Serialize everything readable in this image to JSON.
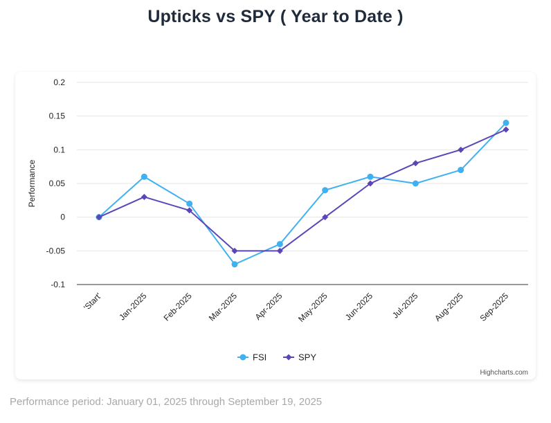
{
  "header": {
    "title": "Upticks vs SPY ( Year to Date )"
  },
  "footer": {
    "note": "Performance period: January 01, 2025 through September 19, 2025"
  },
  "credits": {
    "label": "Highcharts.com"
  },
  "colors": {
    "fsi": "#3fb0f0",
    "spy": "#5b45b8",
    "grid": "#e6e6e6",
    "axis": "#333333"
  },
  "chart_data": {
    "type": "line",
    "title": "Upticks vs SPY ( Year to Date )",
    "xlabel": "",
    "ylabel": "Performance",
    "categories": [
      "'Start'",
      "Jan-2025",
      "Feb-2025",
      "Mar-2025",
      "Apr-2025",
      "May-2025",
      "Jun-2025",
      "Jul-2025",
      "Aug-2025",
      "Sep-2025"
    ],
    "ylim": [
      -0.1,
      0.2
    ],
    "yticks": [
      -0.1,
      -0.05,
      0,
      0.05,
      0.1,
      0.15,
      0.2
    ],
    "ytick_labels": [
      "-0.1",
      "-0.05",
      "0",
      "0.05",
      "0.1",
      "0.15",
      "0.2"
    ],
    "grid": true,
    "legend": "bottom-center",
    "series": [
      {
        "name": "FSI",
        "marker": "circle",
        "values": [
          0,
          0.06,
          0.02,
          -0.07,
          -0.04,
          0.04,
          0.06,
          0.05,
          0.07,
          0.14
        ]
      },
      {
        "name": "SPY",
        "marker": "diamond",
        "values": [
          0,
          0.03,
          0.01,
          -0.05,
          -0.05,
          0,
          0.05,
          0.08,
          0.1,
          0.13
        ]
      }
    ]
  }
}
